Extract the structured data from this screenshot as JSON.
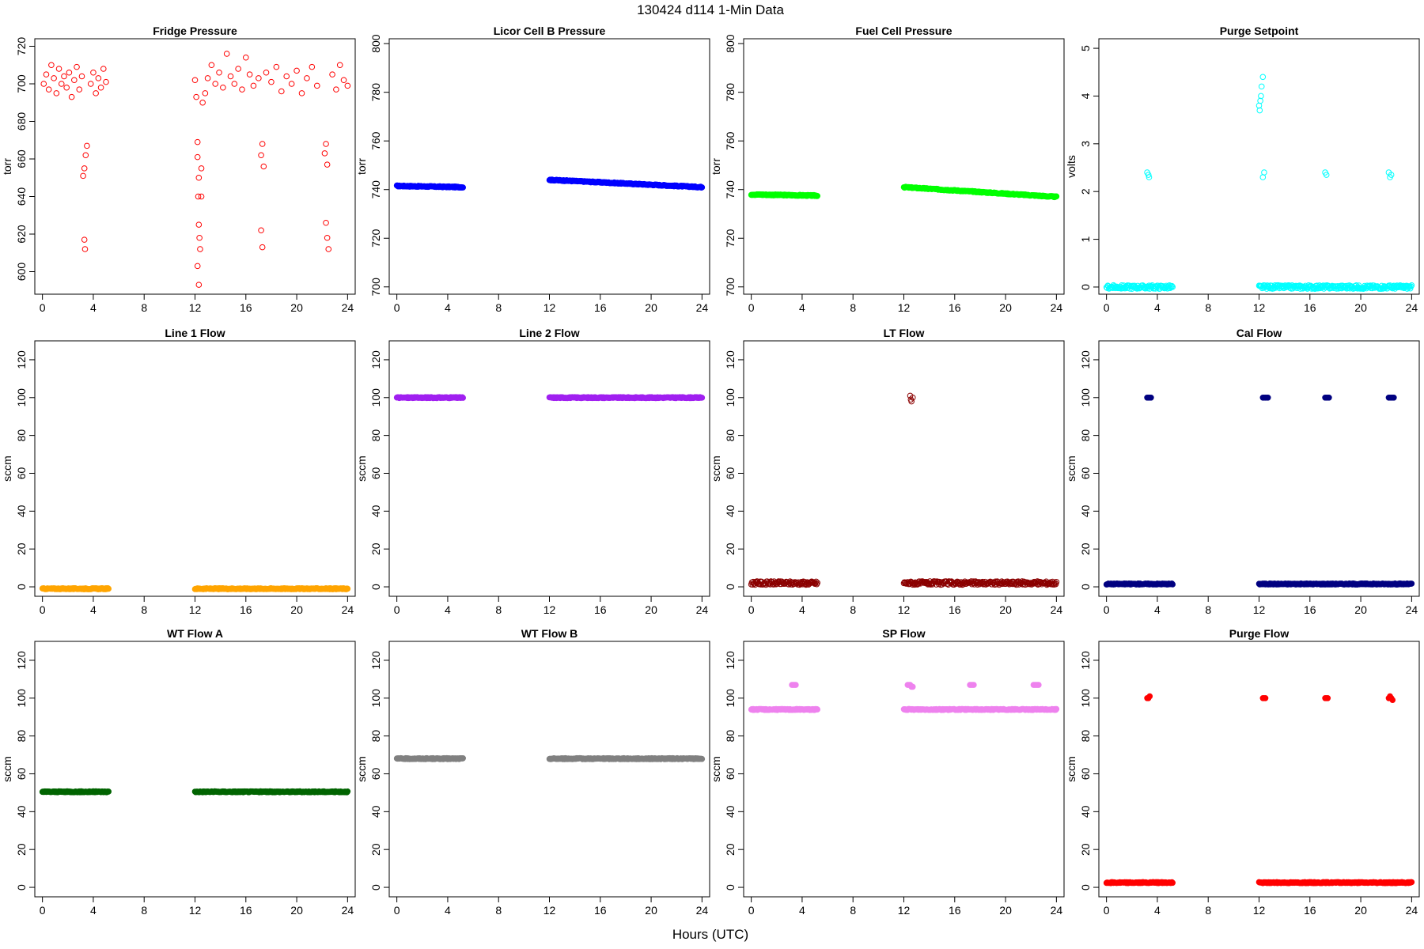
{
  "figure": {
    "title": "130424   d114   1-Min Data",
    "xlabel": "Hours (UTC)"
  },
  "chart_data": [
    {
      "type": "scatter",
      "title": "Fridge Pressure",
      "ylabel": "torr",
      "color": "#ff0000",
      "fill": false,
      "xlim": [
        -0.6,
        24.6
      ],
      "xticks": [
        0,
        4,
        8,
        12,
        16,
        20,
        24
      ],
      "ylim": [
        588,
        724
      ],
      "yticks": [
        600,
        620,
        640,
        660,
        680,
        700,
        720
      ],
      "points": [
        [
          0.1,
          700
        ],
        [
          0.3,
          705
        ],
        [
          0.5,
          697
        ],
        [
          0.7,
          710
        ],
        [
          0.9,
          703
        ],
        [
          1.1,
          695
        ],
        [
          1.3,
          708
        ],
        [
          1.5,
          700
        ],
        [
          1.7,
          704
        ],
        [
          1.9,
          698
        ],
        [
          2.1,
          706
        ],
        [
          2.3,
          693
        ],
        [
          2.5,
          702
        ],
        [
          2.7,
          709
        ],
        [
          2.9,
          697
        ],
        [
          3.1,
          704
        ],
        [
          3.3,
          655
        ],
        [
          3.4,
          662
        ],
        [
          3.5,
          667
        ],
        [
          3.2,
          651
        ],
        [
          3.3,
          617
        ],
        [
          3.35,
          612
        ],
        [
          3.8,
          700
        ],
        [
          4.0,
          706
        ],
        [
          4.2,
          695
        ],
        [
          4.4,
          703
        ],
        [
          4.6,
          698
        ],
        [
          4.8,
          708
        ],
        [
          5.0,
          701
        ],
        [
          12.0,
          702
        ],
        [
          12.1,
          693
        ],
        [
          12.2,
          669
        ],
        [
          12.2,
          661
        ],
        [
          12.3,
          650
        ],
        [
          12.25,
          640
        ],
        [
          12.3,
          625
        ],
        [
          12.35,
          618
        ],
        [
          12.2,
          603
        ],
        [
          12.3,
          593
        ],
        [
          12.4,
          612
        ],
        [
          12.5,
          640
        ],
        [
          12.5,
          655
        ],
        [
          12.6,
          690
        ],
        [
          12.8,
          695
        ],
        [
          13.0,
          703
        ],
        [
          13.3,
          710
        ],
        [
          13.6,
          700
        ],
        [
          13.9,
          706
        ],
        [
          14.2,
          698
        ],
        [
          14.5,
          716
        ],
        [
          14.8,
          704
        ],
        [
          15.1,
          700
        ],
        [
          15.4,
          708
        ],
        [
          15.7,
          697
        ],
        [
          16.0,
          714
        ],
        [
          16.3,
          705
        ],
        [
          16.6,
          699
        ],
        [
          17.0,
          703
        ],
        [
          17.2,
          662
        ],
        [
          17.3,
          668
        ],
        [
          17.4,
          656
        ],
        [
          17.2,
          622
        ],
        [
          17.3,
          613
        ],
        [
          17.6,
          706
        ],
        [
          18.0,
          701
        ],
        [
          18.4,
          709
        ],
        [
          18.8,
          696
        ],
        [
          19.2,
          704
        ],
        [
          19.6,
          700
        ],
        [
          20.0,
          707
        ],
        [
          20.4,
          695
        ],
        [
          20.8,
          703
        ],
        [
          21.2,
          709
        ],
        [
          21.6,
          699
        ],
        [
          22.2,
          663
        ],
        [
          22.3,
          668
        ],
        [
          22.4,
          657
        ],
        [
          22.3,
          626
        ],
        [
          22.4,
          618
        ],
        [
          22.5,
          612
        ],
        [
          22.8,
          705
        ],
        [
          23.1,
          697
        ],
        [
          23.4,
          710
        ],
        [
          23.7,
          702
        ],
        [
          24.0,
          699
        ]
      ]
    },
    {
      "type": "scatter",
      "title": "Licor Cell B Pressure",
      "ylabel": "torr",
      "color": "#0000ff",
      "fill": true,
      "xlim": [
        -0.6,
        24.6
      ],
      "xticks": [
        0,
        4,
        8,
        12,
        16,
        20,
        24
      ],
      "ylim": [
        697,
        802
      ],
      "yticks": [
        700,
        720,
        740,
        760,
        780,
        800
      ],
      "segments": [
        [
          0,
          5.2,
          741.5,
          741.0
        ],
        [
          12.0,
          24.0,
          744.0,
          741.0
        ]
      ]
    },
    {
      "type": "scatter",
      "title": "Fuel Cell Pressure",
      "ylabel": "torr",
      "color": "#00ff00",
      "fill": true,
      "xlim": [
        -0.6,
        24.6
      ],
      "xticks": [
        0,
        4,
        8,
        12,
        16,
        20,
        24
      ],
      "ylim": [
        697,
        802
      ],
      "yticks": [
        700,
        720,
        740,
        760,
        780,
        800
      ],
      "segments": [
        [
          0,
          5.2,
          738.0,
          737.5
        ],
        [
          12.0,
          24.0,
          741.0,
          737.0
        ]
      ]
    },
    {
      "type": "scatter",
      "title": "Purge Setpoint",
      "ylabel": "volts",
      "color": "#00ffff",
      "fill": false,
      "xlim": [
        -0.6,
        24.6
      ],
      "xticks": [
        0,
        4,
        8,
        12,
        16,
        20,
        24
      ],
      "ylim": [
        -0.15,
        5.2
      ],
      "yticks": [
        0,
        1,
        2,
        3,
        4,
        5
      ],
      "segments": [
        [
          0,
          5.2,
          0,
          0
        ],
        [
          12.0,
          24.0,
          0,
          0
        ]
      ],
      "points": [
        [
          3.2,
          2.4
        ],
        [
          3.3,
          2.35
        ],
        [
          3.35,
          2.3
        ],
        [
          12.0,
          3.8
        ],
        [
          12.1,
          3.9
        ],
        [
          12.15,
          4.0
        ],
        [
          12.2,
          4.2
        ],
        [
          12.3,
          4.4
        ],
        [
          12.05,
          3.7
        ],
        [
          12.3,
          2.3
        ],
        [
          12.4,
          2.4
        ],
        [
          17.2,
          2.4
        ],
        [
          17.3,
          2.35
        ],
        [
          22.2,
          2.4
        ],
        [
          22.3,
          2.3
        ],
        [
          22.4,
          2.35
        ]
      ]
    },
    {
      "type": "scatter",
      "title": "Line 1 Flow",
      "ylabel": "sccm",
      "color": "#ffa500",
      "fill": true,
      "xlim": [
        -0.6,
        24.6
      ],
      "xticks": [
        0,
        4,
        8,
        12,
        16,
        20,
        24
      ],
      "ylim": [
        -5,
        130
      ],
      "yticks": [
        0,
        20,
        40,
        60,
        80,
        100,
        120
      ],
      "segments": [
        [
          0,
          5.2,
          -1,
          -1
        ],
        [
          12.0,
          24.0,
          -1,
          -1
        ]
      ]
    },
    {
      "type": "scatter",
      "title": "Line 2 Flow",
      "ylabel": "sccm",
      "color": "#a020f0",
      "fill": true,
      "xlim": [
        -0.6,
        24.6
      ],
      "xticks": [
        0,
        4,
        8,
        12,
        16,
        20,
        24
      ],
      "ylim": [
        -5,
        130
      ],
      "yticks": [
        0,
        20,
        40,
        60,
        80,
        100,
        120
      ],
      "segments": [
        [
          0,
          5.2,
          100,
          100
        ],
        [
          12.0,
          24.0,
          100,
          100
        ]
      ]
    },
    {
      "type": "scatter",
      "title": "LT Flow",
      "ylabel": "sccm",
      "color": "#8b0000",
      "fill": false,
      "xlim": [
        -0.6,
        24.6
      ],
      "xticks": [
        0,
        4,
        8,
        12,
        16,
        20,
        24
      ],
      "ylim": [
        -5,
        130
      ],
      "yticks": [
        0,
        20,
        40,
        60,
        80,
        100,
        120
      ],
      "segments": [
        [
          0,
          5.2,
          2,
          2
        ],
        [
          12.0,
          24.0,
          2,
          2
        ]
      ],
      "points": [
        [
          12.5,
          101
        ],
        [
          12.6,
          98
        ],
        [
          12.7,
          100
        ],
        [
          12.55,
          99
        ]
      ]
    },
    {
      "type": "scatter",
      "title": "Cal Flow",
      "ylabel": "sccm",
      "color": "#000080",
      "fill": true,
      "xlim": [
        -0.6,
        24.6
      ],
      "xticks": [
        0,
        4,
        8,
        12,
        16,
        20,
        24
      ],
      "ylim": [
        -5,
        130
      ],
      "yticks": [
        0,
        20,
        40,
        60,
        80,
        100,
        120
      ],
      "segments": [
        [
          0,
          5.2,
          1.5,
          1.5
        ],
        [
          12.0,
          24.0,
          1.5,
          1.5
        ]
      ],
      "points": [
        [
          3.2,
          100
        ],
        [
          3.3,
          100
        ],
        [
          3.4,
          100
        ],
        [
          3.5,
          100
        ],
        [
          12.3,
          100
        ],
        [
          12.4,
          100
        ],
        [
          12.5,
          100
        ],
        [
          12.6,
          100
        ],
        [
          12.7,
          100
        ],
        [
          17.2,
          100
        ],
        [
          17.3,
          100
        ],
        [
          17.4,
          100
        ],
        [
          17.5,
          100
        ],
        [
          22.2,
          100
        ],
        [
          22.3,
          100
        ],
        [
          22.4,
          100
        ],
        [
          22.5,
          100
        ],
        [
          22.6,
          100
        ]
      ]
    },
    {
      "type": "scatter",
      "title": "WT Flow A",
      "ylabel": "sccm",
      "color": "#006400",
      "fill": true,
      "xlim": [
        -0.6,
        24.6
      ],
      "xticks": [
        0,
        4,
        8,
        12,
        16,
        20,
        24
      ],
      "ylim": [
        -5,
        130
      ],
      "yticks": [
        0,
        20,
        40,
        60,
        80,
        100,
        120
      ],
      "segments": [
        [
          0,
          5.2,
          50.5,
          50.5
        ],
        [
          12.0,
          24.0,
          50.5,
          50.5
        ]
      ]
    },
    {
      "type": "scatter",
      "title": "WT Flow B",
      "ylabel": "sccm",
      "color": "#808080",
      "fill": true,
      "xlim": [
        -0.6,
        24.6
      ],
      "xticks": [
        0,
        4,
        8,
        12,
        16,
        20,
        24
      ],
      "ylim": [
        -5,
        130
      ],
      "yticks": [
        0,
        20,
        40,
        60,
        80,
        100,
        120
      ],
      "segments": [
        [
          0,
          5.2,
          68,
          68
        ],
        [
          12.0,
          24.0,
          68,
          68
        ]
      ]
    },
    {
      "type": "scatter",
      "title": "SP Flow",
      "ylabel": "sccm",
      "color": "#ee82ee",
      "fill": true,
      "xlim": [
        -0.6,
        24.6
      ],
      "xticks": [
        0,
        4,
        8,
        12,
        16,
        20,
        24
      ],
      "ylim": [
        -5,
        130
      ],
      "yticks": [
        0,
        20,
        40,
        60,
        80,
        100,
        120
      ],
      "segments": [
        [
          0,
          5.2,
          94,
          94
        ],
        [
          12.0,
          24.0,
          94,
          94
        ]
      ],
      "points": [
        [
          3.2,
          107
        ],
        [
          3.3,
          107
        ],
        [
          3.4,
          107
        ],
        [
          3.5,
          107
        ],
        [
          12.3,
          107
        ],
        [
          12.4,
          107
        ],
        [
          12.5,
          107
        ],
        [
          12.6,
          106
        ],
        [
          12.7,
          106
        ],
        [
          17.2,
          107
        ],
        [
          17.3,
          107
        ],
        [
          17.4,
          107
        ],
        [
          17.5,
          107
        ],
        [
          22.2,
          107
        ],
        [
          22.3,
          107
        ],
        [
          22.4,
          107
        ],
        [
          22.5,
          107
        ],
        [
          22.6,
          107
        ]
      ]
    },
    {
      "type": "scatter",
      "title": "Purge Flow",
      "ylabel": "sccm",
      "color": "#ff0000",
      "fill": true,
      "xlim": [
        -0.6,
        24.6
      ],
      "xticks": [
        0,
        4,
        8,
        12,
        16,
        20,
        24
      ],
      "ylim": [
        -5,
        130
      ],
      "yticks": [
        0,
        20,
        40,
        60,
        80,
        100,
        120
      ],
      "segments": [
        [
          0,
          5.2,
          2.5,
          2.5
        ],
        [
          12.0,
          24.0,
          2.5,
          2.5
        ]
      ],
      "points": [
        [
          3.2,
          100
        ],
        [
          3.3,
          100
        ],
        [
          3.4,
          101
        ],
        [
          12.3,
          100
        ],
        [
          12.4,
          100
        ],
        [
          12.5,
          100
        ],
        [
          17.2,
          100
        ],
        [
          17.3,
          100
        ],
        [
          17.4,
          100
        ],
        [
          22.2,
          100
        ],
        [
          22.3,
          101
        ],
        [
          22.4,
          100
        ],
        [
          22.5,
          99
        ]
      ]
    }
  ]
}
